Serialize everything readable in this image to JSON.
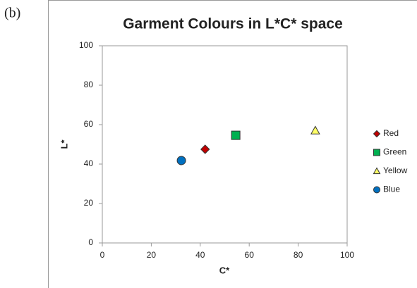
{
  "chart_data": {
    "type": "scatter",
    "panel_label": "(b)",
    "title": "Garment Colours in L*C* space",
    "xlabel": "C*",
    "ylabel": "L*",
    "xlim": [
      0,
      100
    ],
    "xticks": [
      0,
      20,
      40,
      60,
      80,
      100
    ],
    "ylim": [
      0,
      100
    ],
    "yticks": [
      0,
      20,
      40,
      60,
      80,
      100
    ],
    "grid": false,
    "legend": "right",
    "series": [
      {
        "name": "Red",
        "color": "#c00000",
        "marker": "diamond",
        "x": [
          42
        ],
        "values": [
          47.5
        ]
      },
      {
        "name": "Green",
        "color": "#00b050",
        "marker": "square",
        "x": [
          54.5
        ],
        "values": [
          54.6
        ]
      },
      {
        "name": "Yellow",
        "color": "#ffff66",
        "marker": "triangle",
        "x": [
          87
        ],
        "values": [
          57
        ]
      },
      {
        "name": "Blue",
        "color": "#0070c0",
        "marker": "circle",
        "x": [
          32.3
        ],
        "values": [
          41.8
        ]
      }
    ]
  }
}
